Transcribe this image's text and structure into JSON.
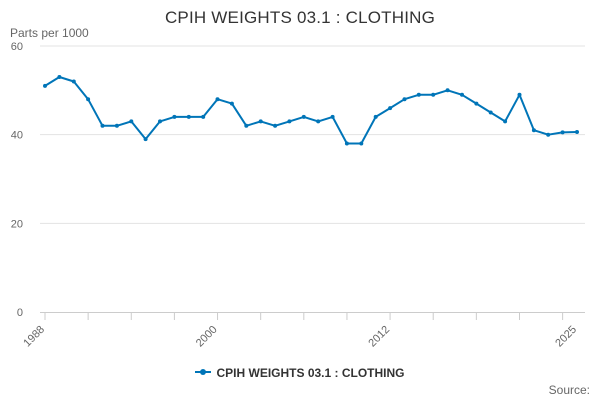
{
  "chart_data": {
    "type": "line",
    "title": "CPIH WEIGHTS 03.1 : CLOTHING",
    "ylabel": "Parts per 1000",
    "ylim": [
      0,
      60
    ],
    "yticks": [
      0,
      20,
      40,
      60
    ],
    "xlim": [
      1988,
      2025
    ],
    "xtick_labels": [
      "1988",
      "2000",
      "2012",
      "2025"
    ],
    "x": [
      1988,
      1989,
      1990,
      1991,
      1992,
      1993,
      1994,
      1995,
      1996,
      1997,
      1998,
      1999,
      2000,
      2001,
      2002,
      2003,
      2004,
      2005,
      2006,
      2007,
      2008,
      2009,
      2010,
      2011,
      2012,
      2013,
      2014,
      2015,
      2016,
      2017,
      2018,
      2019,
      2020,
      2021,
      2022,
      2023,
      2024,
      2025
    ],
    "series": [
      {
        "name": "CPIH WEIGHTS 03.1 : CLOTHING",
        "color": "#0075b8",
        "values": [
          51,
          53,
          52,
          48,
          42,
          42,
          43,
          39,
          43,
          44,
          44,
          44,
          48,
          47,
          42,
          43,
          42,
          43,
          44,
          43,
          44,
          38,
          38,
          44,
          46,
          48,
          49,
          49,
          50,
          49,
          47,
          45,
          43,
          49,
          41,
          40,
          40.5,
          40.6
        ]
      }
    ],
    "grid": true,
    "legend": "bottom"
  },
  "source_label": "Source:"
}
